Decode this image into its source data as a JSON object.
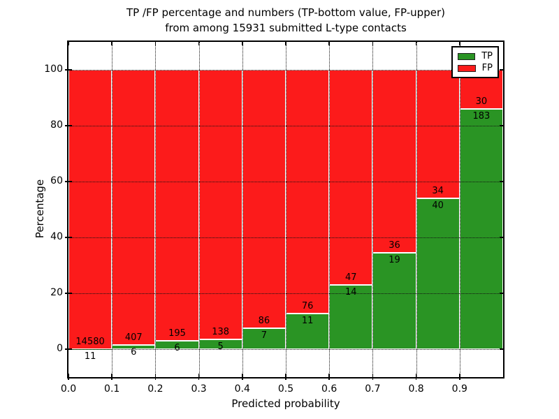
{
  "figure": {
    "title_line1": "TP /FP percentage and numbers (TP-bottom value, FP-upper)",
    "title_line2": "from among 15931 submitted L-type contacts",
    "xlabel": "Predicted probability",
    "ylabel": "Percentage"
  },
  "chart_data": {
    "type": "bar",
    "stacked": true,
    "title": "TP /FP percentage and numbers (TP-bottom value, FP-upper) from among 15931 submitted L-type contacts",
    "xlabel": "Predicted probability",
    "ylabel": "Percentage",
    "total_contacts": 15931,
    "grid": true,
    "legend_position": "upper right",
    "xlim": [
      0.0,
      1.0
    ],
    "ylim": [
      -10,
      110
    ],
    "x_ticks": [
      0.0,
      0.1,
      0.2,
      0.3,
      0.4,
      0.5,
      0.6,
      0.7,
      0.8,
      0.9
    ],
    "x_tick_labels": [
      "0.0",
      "0.1",
      "0.2",
      "0.3",
      "0.4",
      "0.5",
      "0.6",
      "0.7",
      "0.8",
      "0.9"
    ],
    "y_ticks": [
      0,
      20,
      40,
      60,
      80,
      100
    ],
    "y_tick_labels": [
      "0",
      "20",
      "40",
      "60",
      "80",
      "100"
    ],
    "x_bin_edges": [
      0.0,
      0.1,
      0.2,
      0.3,
      0.4,
      0.5,
      0.6,
      0.7,
      0.8,
      0.9,
      1.0
    ],
    "series": [
      {
        "name": "TP",
        "color": "#2a9424",
        "counts": [
          11,
          6,
          6,
          5,
          7,
          11,
          14,
          19,
          40,
          183
        ]
      },
      {
        "name": "FP",
        "color": "#fc1b1b",
        "counts": [
          14580,
          407,
          195,
          138,
          86,
          76,
          47,
          36,
          34,
          30
        ]
      }
    ],
    "bins": [
      {
        "x_range": [
          0.0,
          0.1
        ],
        "tp_count": 11,
        "fp_count": 14580,
        "tp_percent": 0.08,
        "fp_percent": 99.92
      },
      {
        "x_range": [
          0.1,
          0.2
        ],
        "tp_count": 6,
        "fp_count": 407,
        "tp_percent": 1.45,
        "fp_percent": 98.55
      },
      {
        "x_range": [
          0.2,
          0.3
        ],
        "tp_count": 6,
        "fp_count": 195,
        "tp_percent": 2.99,
        "fp_percent": 97.01
      },
      {
        "x_range": [
          0.3,
          0.4
        ],
        "tp_count": 5,
        "fp_count": 138,
        "tp_percent": 3.5,
        "fp_percent": 96.5
      },
      {
        "x_range": [
          0.4,
          0.5
        ],
        "tp_count": 7,
        "fp_count": 86,
        "tp_percent": 7.53,
        "fp_percent": 92.47
      },
      {
        "x_range": [
          0.5,
          0.6
        ],
        "tp_count": 11,
        "fp_count": 76,
        "tp_percent": 12.64,
        "fp_percent": 87.36
      },
      {
        "x_range": [
          0.6,
          0.7
        ],
        "tp_count": 14,
        "fp_count": 47,
        "tp_percent": 22.95,
        "fp_percent": 77.05
      },
      {
        "x_range": [
          0.7,
          0.8
        ],
        "tp_count": 19,
        "fp_count": 36,
        "tp_percent": 34.55,
        "fp_percent": 65.45
      },
      {
        "x_range": [
          0.8,
          0.9
        ],
        "tp_count": 40,
        "fp_count": 34,
        "tp_percent": 54.05,
        "fp_percent": 45.95
      },
      {
        "x_range": [
          0.9,
          1.0
        ],
        "tp_count": 183,
        "fp_count": 30,
        "tp_percent": 85.92,
        "fp_percent": 14.08
      }
    ]
  }
}
